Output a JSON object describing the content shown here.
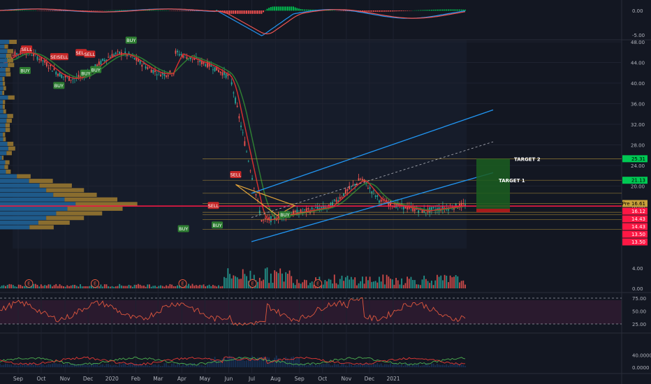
{
  "macd_axis": {
    "labels": [
      "0.00",
      "-5.00"
    ],
    "values": [
      0,
      -5
    ]
  },
  "price_axis": {
    "labels": [
      "48.00",
      "44.00",
      "40.00",
      "36.00",
      "32.00",
      "28.00",
      "24.00",
      "20.00",
      "16.00"
    ],
    "values": [
      48,
      44,
      40,
      36,
      32,
      28,
      24,
      20,
      16
    ]
  },
  "volume_axis": {
    "labels": [
      "4.00",
      "0.00"
    ],
    "values": [
      4,
      0
    ]
  },
  "rsi_axis": {
    "labels": [
      "75.00",
      "50.00",
      "25.00"
    ],
    "values": [
      75,
      50,
      25
    ]
  },
  "dmi_axis": {
    "labels": [
      "40.0000",
      "0.0000"
    ],
    "values": [
      40,
      0
    ]
  },
  "price_badges": [
    {
      "label": "25.31",
      "value": 25.31,
      "color": "#00c853",
      "text_color": "#000000"
    },
    {
      "label": "21.13",
      "value": 21.13,
      "color": "#00c853",
      "text_color": "#000000"
    },
    {
      "label": "Pre 16.61",
      "value": 16.61,
      "color": "#c9a13a",
      "text_color": "#000000"
    },
    {
      "label": "16.12",
      "value": 16.12,
      "color": "#ff1744",
      "text_color": "#ffffff"
    },
    {
      "label": "14.43",
      "value": 14.43,
      "color": "#ff1744",
      "text_color": "#ffffff"
    },
    {
      "label": "14.43",
      "value": 14.43,
      "color": "#ff1744",
      "text_color": "#ffffff"
    },
    {
      "label": "13.50",
      "value": 13.5,
      "color": "#ff1744",
      "text_color": "#ffffff"
    },
    {
      "label": "13.50",
      "value": 13.5,
      "color": "#ff1744",
      "text_color": "#ffffff"
    }
  ],
  "targets": [
    {
      "label": "TARGET 2",
      "value": 25.31
    },
    {
      "label": "TARGET 1",
      "value": 21.13
    }
  ],
  "signals": [
    {
      "type": "SELL",
      "date": "2019-09-12",
      "price": 46.5
    },
    {
      "type": "BUY",
      "date": "2019-09-10",
      "price": 42.3
    },
    {
      "type": "SELL",
      "date": "2019-10-20",
      "price": 45.0
    },
    {
      "type": "SELL",
      "date": "2019-10-29",
      "price": 45.0
    },
    {
      "type": "BUY",
      "date": "2019-10-24",
      "price": 39.4
    },
    {
      "type": "SELL",
      "date": "2019-11-22",
      "price": 45.8
    },
    {
      "type": "SELL",
      "date": "2019-12-03",
      "price": 45.5
    },
    {
      "type": "BUY",
      "date": "2019-11-28",
      "price": 41.8
    },
    {
      "type": "BUY",
      "date": "2019-12-11",
      "price": 42.5
    },
    {
      "type": "BUY",
      "date": "2020-01-26",
      "price": 48.2
    },
    {
      "type": "BUY",
      "date": "2020-04-03",
      "price": 11.6
    },
    {
      "type": "SELL",
      "date": "2020-05-12",
      "price": 16.1
    },
    {
      "type": "BUY",
      "date": "2020-05-17",
      "price": 12.3
    },
    {
      "type": "SELL",
      "date": "2020-06-10",
      "price": 22.1
    },
    {
      "type": "BUY",
      "date": "2020-08-13",
      "price": 14.3
    }
  ],
  "earnings_marker": "E",
  "dates": {
    "labels": [
      "Sep",
      "Oct",
      "Nov",
      "Dec",
      "2020",
      "Feb",
      "Mar",
      "Apr",
      "May",
      "Jun",
      "Jul",
      "Aug",
      "Sep",
      "Oct",
      "Nov",
      "Dec",
      "2021"
    ]
  },
  "colors": {
    "up": "#26a69a",
    "down": "#ef5350",
    "channel": "#2196f3",
    "wedge": "#e0a23a",
    "target_line": "#c9a13a",
    "support_line": "#ff1744"
  }
}
